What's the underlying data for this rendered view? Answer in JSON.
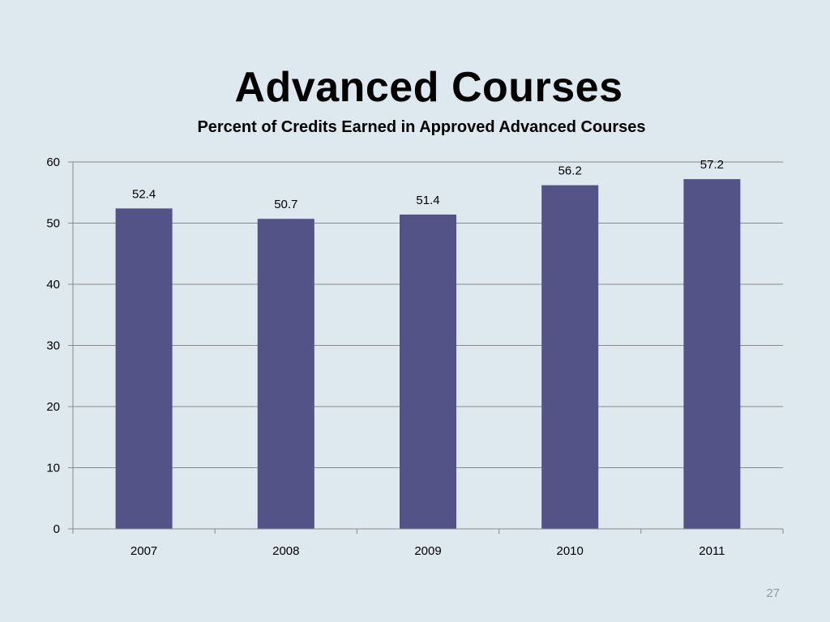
{
  "slide": {
    "title": "Advanced Courses",
    "subtitle": "Percent of Credits Earned in Approved Advanced Courses",
    "page_number": "27"
  },
  "colors": {
    "background": "#dde8ef",
    "bar": "#535387",
    "gridline": "#8a8a8a",
    "text": "#000000"
  },
  "chart_data": {
    "type": "bar",
    "title": "Percent of Credits Earned in Approved Advanced Courses",
    "xlabel": "",
    "ylabel": "",
    "categories": [
      "2007",
      "2008",
      "2009",
      "2010",
      "2011"
    ],
    "values": [
      52.4,
      50.7,
      51.4,
      56.2,
      57.2
    ],
    "data_labels": [
      "52.4",
      "50.7",
      "51.4",
      "56.2",
      "57.2"
    ],
    "ylim": [
      0,
      60
    ],
    "yticks": [
      0,
      10,
      20,
      30,
      40,
      50,
      60
    ],
    "ytick_labels": [
      "0",
      "10",
      "20",
      "30",
      "40",
      "50",
      "60"
    ],
    "grid": true,
    "legend": "none"
  }
}
